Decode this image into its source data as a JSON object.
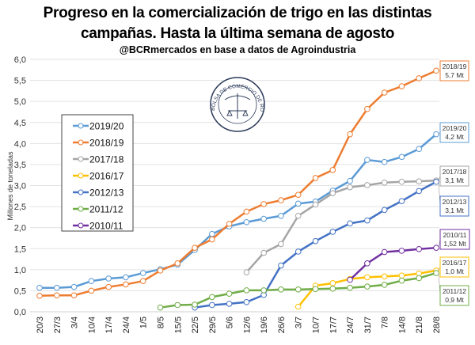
{
  "chart_data": {
    "type": "line",
    "title_line1": "Progreso en la comercialización de trigo en las distintas",
    "title_line2": "campañas. Hasta la última semana de agosto",
    "subtitle": "@BCRmercados en base a datos de Agroindustria",
    "ylabel": "Millones de toneladas",
    "xlabel": "",
    "ylim": [
      0,
      6
    ],
    "yticks": [
      "0,0",
      "0,5",
      "1,0",
      "1,5",
      "2,0",
      "2,5",
      "3,0",
      "3,5",
      "4,0",
      "4,5",
      "5,0",
      "5,5",
      "6,0"
    ],
    "grid": true,
    "legend_position": "left",
    "categories": [
      "20/3",
      "27/3",
      "3/4",
      "10/4",
      "17/4",
      "24/4",
      "1/5",
      "8/5",
      "15/5",
      "22/5",
      "29/5",
      "5/6",
      "12/6",
      "19/6",
      "26/6",
      "3/7",
      "10/7",
      "17/7",
      "24/7",
      "31/7",
      "7/8",
      "14/8",
      "21/8",
      "28/8"
    ],
    "series": [
      {
        "name": "2019/20",
        "color": "#5B9BD5",
        "values": [
          0.57,
          0.57,
          0.59,
          0.73,
          0.79,
          0.82,
          0.92,
          1.01,
          1.12,
          1.47,
          1.85,
          2.03,
          2.13,
          2.21,
          2.28,
          2.57,
          2.62,
          2.88,
          3.11,
          3.61,
          3.56,
          3.68,
          3.87,
          4.22
        ],
        "end_label": [
          "2019/20",
          "4,2 Mt"
        ]
      },
      {
        "name": "2018/19",
        "color": "#ED7D31",
        "values": [
          0.38,
          0.39,
          0.39,
          0.5,
          0.59,
          0.65,
          0.73,
          0.98,
          1.15,
          1.52,
          1.72,
          2.09,
          2.38,
          2.56,
          2.65,
          2.78,
          3.18,
          3.37,
          4.22,
          4.82,
          5.21,
          5.36,
          5.55,
          5.73
        ],
        "end_label": [
          "2018/19",
          "5,7 Mt"
        ]
      },
      {
        "name": "2017/18",
        "color": "#A5A5A5",
        "values": [
          null,
          null,
          null,
          null,
          null,
          null,
          null,
          null,
          null,
          null,
          null,
          null,
          0.94,
          1.4,
          1.61,
          2.28,
          2.55,
          2.82,
          2.96,
          3.01,
          3.07,
          3.09,
          3.1,
          3.12
        ],
        "end_label": [
          "2017/18",
          "3,1 Mt"
        ]
      },
      {
        "name": "2016/17",
        "color": "#FFC000",
        "values": [
          null,
          null,
          null,
          null,
          null,
          null,
          null,
          null,
          null,
          null,
          null,
          null,
          null,
          null,
          null,
          0.12,
          0.62,
          0.68,
          0.78,
          0.82,
          0.84,
          0.86,
          0.91,
          0.98
        ],
        "end_label": [
          "2016/17",
          "1,0 Mt"
        ]
      },
      {
        "name": "2012/13",
        "color": "#4472C4",
        "values": [
          null,
          null,
          null,
          null,
          null,
          null,
          null,
          null,
          null,
          0.1,
          0.16,
          0.19,
          0.23,
          0.4,
          1.1,
          1.43,
          1.68,
          1.9,
          2.1,
          2.17,
          2.42,
          2.63,
          2.87,
          3.09
        ],
        "end_label": [
          "2012/13",
          "3,1 Mt"
        ]
      },
      {
        "name": "2011/12",
        "color": "#70AD47",
        "values": [
          null,
          null,
          null,
          null,
          null,
          null,
          null,
          0.1,
          0.16,
          0.17,
          0.35,
          0.43,
          0.51,
          0.51,
          0.53,
          0.53,
          0.54,
          0.55,
          0.57,
          0.6,
          0.64,
          0.74,
          0.8,
          0.92
        ],
        "end_label": [
          "2011/12",
          "0,9 Mt"
        ]
      },
      {
        "name": "2010/11",
        "color": "#7030A0",
        "values": [
          null,
          null,
          null,
          null,
          null,
          null,
          null,
          null,
          null,
          null,
          null,
          null,
          null,
          null,
          null,
          null,
          null,
          null,
          0.76,
          1.15,
          1.42,
          1.45,
          1.49,
          1.52
        ],
        "end_label": [
          "2010/11",
          "1,52 Mt"
        ]
      }
    ]
  },
  "logo": {
    "text": "BOLSA DE COMERCIO DE ROSARIO"
  }
}
